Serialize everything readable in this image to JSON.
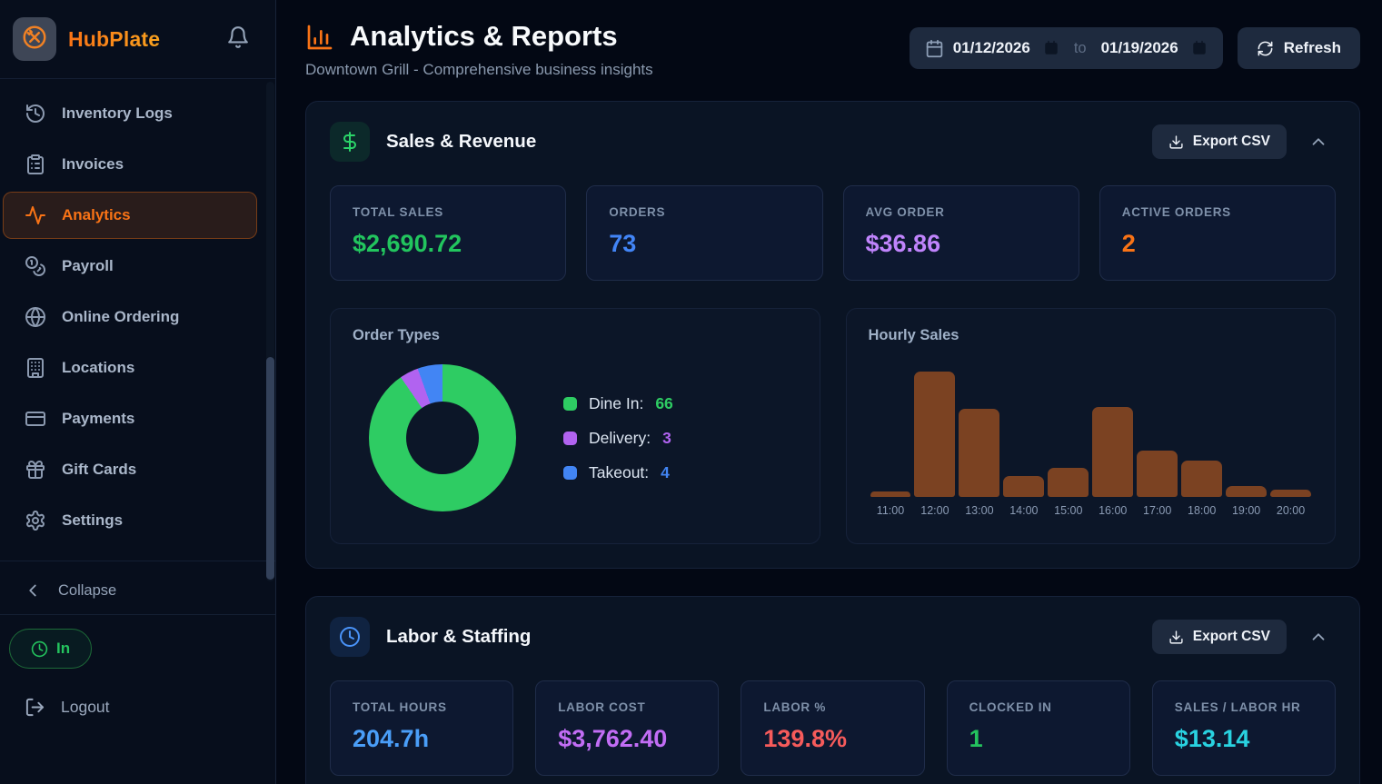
{
  "app": {
    "name": "HubPlate"
  },
  "sidebar": {
    "items": [
      {
        "label": "Inventory Logs",
        "icon": "history-icon",
        "active": false
      },
      {
        "label": "Invoices",
        "icon": "clipboard-icon",
        "active": false
      },
      {
        "label": "Analytics",
        "icon": "activity-icon",
        "active": true
      },
      {
        "label": "Payroll",
        "icon": "coins-icon",
        "active": false
      },
      {
        "label": "Online Ordering",
        "icon": "globe-icon",
        "active": false
      },
      {
        "label": "Locations",
        "icon": "building-icon",
        "active": false
      },
      {
        "label": "Payments",
        "icon": "credit-card-icon",
        "active": false
      },
      {
        "label": "Gift Cards",
        "icon": "gift-icon",
        "active": false
      },
      {
        "label": "Settings",
        "icon": "gear-icon",
        "active": false
      }
    ],
    "collapse_label": "Collapse",
    "clock_status": "In",
    "logout_label": "Logout"
  },
  "header": {
    "title": "Analytics & Reports",
    "subtitle": "Downtown Grill - Comprehensive business insights",
    "date_from": "01/12/2026",
    "date_to_label": "to",
    "date_to": "01/19/2026",
    "refresh_label": "Refresh"
  },
  "sales_section": {
    "title": "Sales & Revenue",
    "export_label": "Export CSV",
    "stats": [
      {
        "label": "TOTAL SALES",
        "value": "$2,690.72",
        "color": "#22c55e"
      },
      {
        "label": "ORDERS",
        "value": "73",
        "color": "#4285f7"
      },
      {
        "label": "AVG ORDER",
        "value": "$36.86",
        "color": "#c084fc"
      },
      {
        "label": "ACTIVE ORDERS",
        "value": "2",
        "color": "#f97316"
      }
    ]
  },
  "labor_section": {
    "title": "Labor & Staffing",
    "export_label": "Export CSV",
    "stats": [
      {
        "label": "TOTAL HOURS",
        "value": "204.7h",
        "color": "#4a9ef8"
      },
      {
        "label": "LABOR COST",
        "value": "$3,762.40",
        "color": "#c26df5"
      },
      {
        "label": "LABOR %",
        "value": "139.8%",
        "color": "#f65b5b"
      },
      {
        "label": "CLOCKED IN",
        "value": "1",
        "color": "#24c35e"
      },
      {
        "label": "SALES / LABOR HR",
        "value": "$13.14",
        "color": "#29d2e0"
      }
    ]
  },
  "chart_data": [
    {
      "type": "pie",
      "donut": true,
      "title": "Order Types",
      "labels": [
        "Dine In",
        "Delivery",
        "Takeout"
      ],
      "values": [
        66,
        3,
        4
      ],
      "colors": [
        "#2ecc63",
        "#b163f0",
        "#4285f4"
      ],
      "legend_position": "right"
    },
    {
      "type": "bar",
      "title": "Hourly Sales",
      "categories": [
        "11:00",
        "12:00",
        "13:00",
        "14:00",
        "15:00",
        "16:00",
        "17:00",
        "18:00",
        "19:00",
        "20:00"
      ],
      "values_pct_of_max": [
        4,
        100,
        70,
        17,
        23,
        72,
        37,
        29,
        9,
        6
      ],
      "bar_color": "#7b4222",
      "xlabel": "",
      "ylabel": "",
      "grid": false,
      "legend": false
    }
  ]
}
